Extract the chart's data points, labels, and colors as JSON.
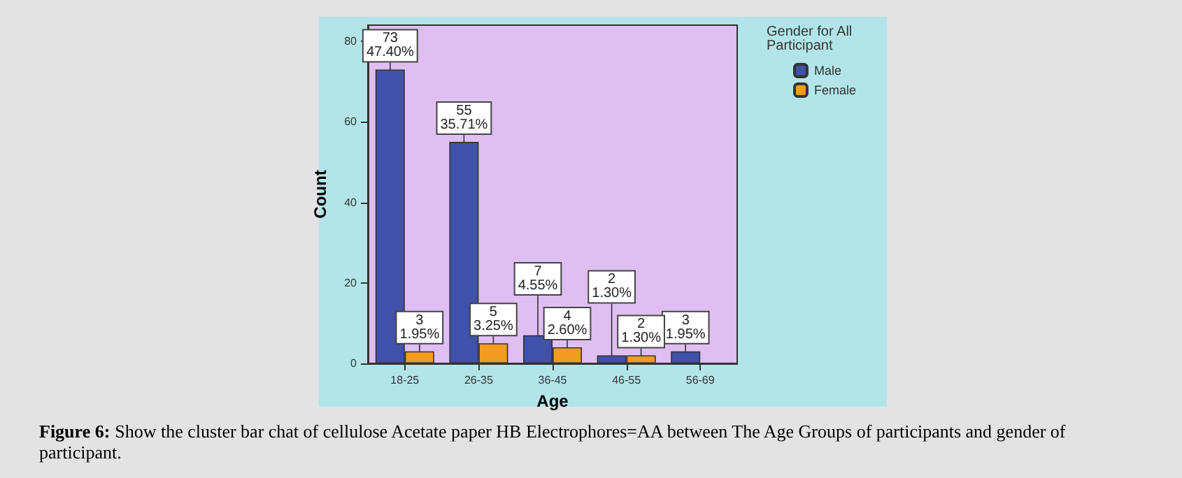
{
  "chart_data": {
    "type": "bar",
    "categories": [
      "18-25",
      "26-35",
      "36-45",
      "46-55",
      "56-69"
    ],
    "series": [
      {
        "name": "Male",
        "color": "#3f51a8",
        "values": [
          73,
          55,
          7,
          2,
          3
        ],
        "value_labels": [
          "73\n47.40%",
          "55\n35.71%",
          "7\n4.55%",
          "2\n1.30%",
          "3\n1.95%"
        ]
      },
      {
        "name": "Female",
        "color": "#f39c1f",
        "values": [
          3,
          5,
          4,
          2,
          null
        ],
        "value_labels": [
          "3\n1.95%",
          "5\n3.25%",
          "4\n2.60%",
          "2\n1.30%",
          null
        ]
      }
    ],
    "xlabel": "Age",
    "ylabel": "Count",
    "legend_title": "Gender for All Participant",
    "legend": "top right",
    "grid": false,
    "ylim": [
      0,
      84
    ],
    "yticks": [
      0,
      20,
      40,
      60,
      80
    ],
    "annotations": [
      "Figure 6: Show the cluster bar chat of cellulose Acetate paper HB Electrophores=AA between The Age Groups of participants and gender of participant."
    ]
  }
}
